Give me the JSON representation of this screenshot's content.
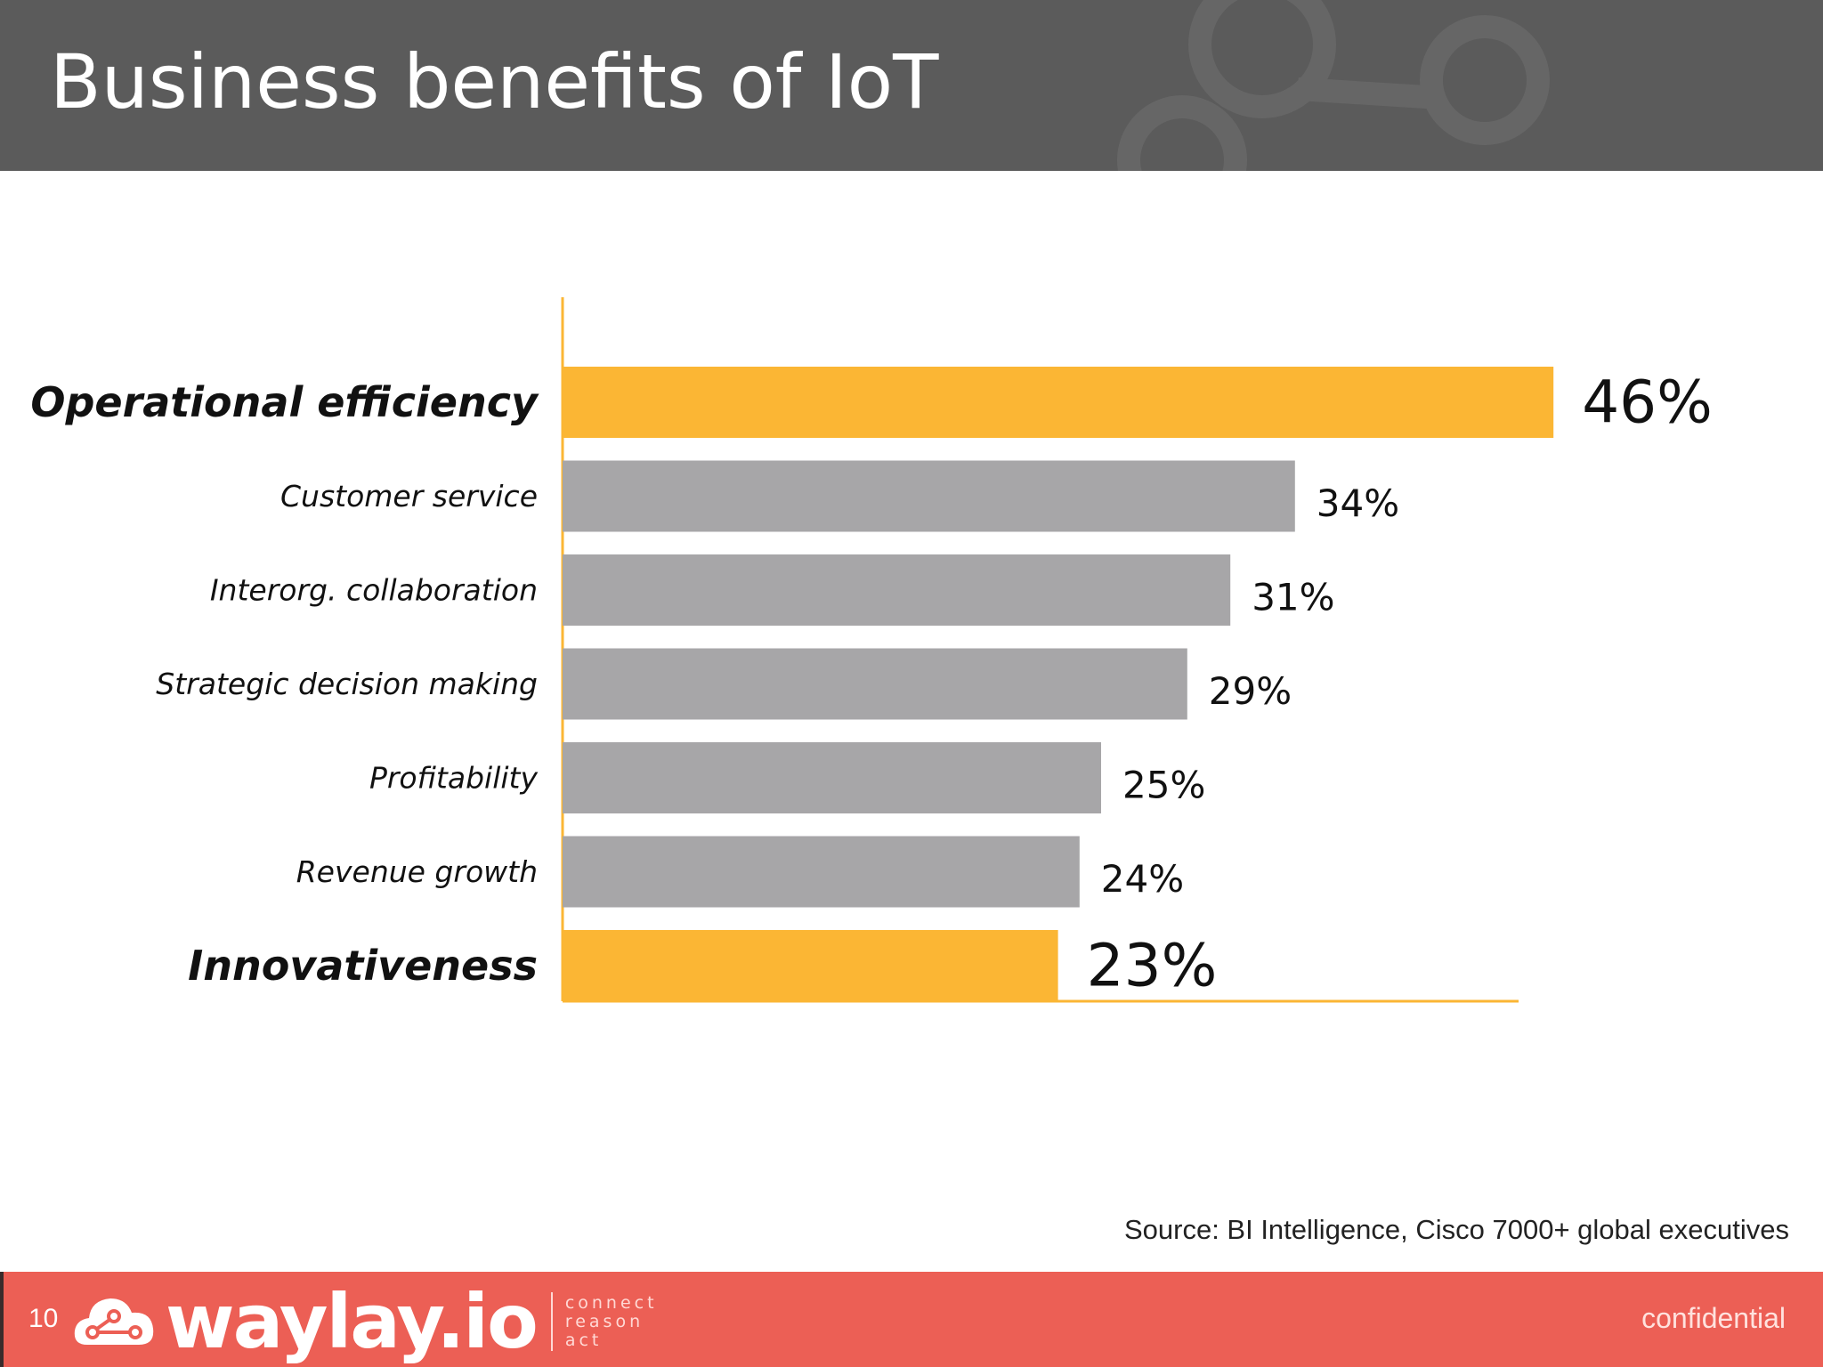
{
  "slide": {
    "title": "Business benefits of IoT",
    "source": "Source: BI Intelligence, Cisco 7000+ global executives",
    "page_number": "10",
    "confidential_label": "confidential"
  },
  "brand": {
    "name": "waylay.io",
    "tagline": [
      "connect",
      "reason",
      "act"
    ],
    "header_color": "#5b5b5b",
    "footer_color": "#ec5f55",
    "highlight_color": "#fbb634",
    "bar_color": "#a7a6a8"
  },
  "chart_data": {
    "type": "bar",
    "orientation": "horizontal",
    "title": "",
    "xlabel": "",
    "ylabel": "",
    "xlim": [
      0,
      50
    ],
    "grid": false,
    "legend": "none",
    "categories": [
      "Operational efficiency",
      "Customer service",
      "Interorg. collaboration",
      "Strategic decision making",
      "Profitability",
      "Revenue growth",
      "Innovativeness"
    ],
    "values": [
      46,
      34,
      31,
      29,
      25,
      24,
      23
    ],
    "value_labels": [
      "46%",
      "34%",
      "31%",
      "29%",
      "25%",
      "24%",
      "23%"
    ],
    "highlighted": [
      true,
      false,
      false,
      false,
      false,
      false,
      true
    ]
  }
}
